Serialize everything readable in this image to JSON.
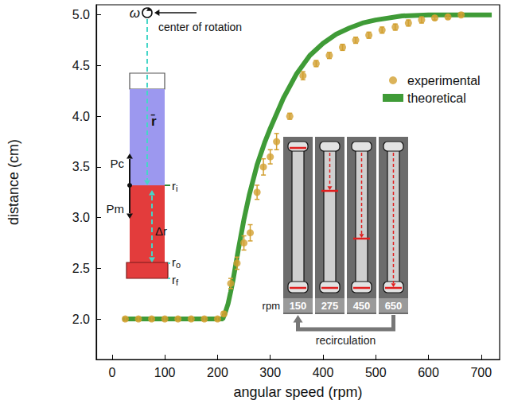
{
  "chart_data": {
    "type": "scatter",
    "x_label": "angular speed (rpm)",
    "y_label": "distance (cm)",
    "xlim": [
      -30,
      735
    ],
    "ylim": [
      1.6,
      5.1
    ],
    "xticks": [
      0,
      100,
      200,
      300,
      400,
      500,
      600,
      700
    ],
    "yticks": [
      {
        "value": 2,
        "label": "2.0"
      },
      2.5,
      {
        "value": 3,
        "label": "3.0"
      },
      3.5,
      {
        "value": 4,
        "label": "4.0"
      },
      4.5,
      {
        "value": 5,
        "label": "5.0"
      }
    ],
    "grid": false,
    "legend": "right",
    "series": [
      {
        "name": "experimental",
        "type": "scatter",
        "color": "#d2a031",
        "marker": "circle",
        "x": [
          25,
          50,
          75,
          100,
          125,
          150,
          175,
          200,
          212,
          225,
          237,
          250,
          262,
          275,
          287,
          300,
          312,
          337,
          362,
          387,
          412,
          437,
          462,
          487,
          512,
          537,
          562,
          587,
          612,
          637,
          662
        ],
        "values": [
          2.0,
          2.0,
          2.0,
          2.0,
          2.0,
          2.0,
          2.0,
          2.0,
          2.05,
          2.35,
          2.55,
          2.75,
          2.85,
          3.25,
          3.5,
          3.6,
          3.75,
          4.0,
          4.4,
          4.52,
          4.6,
          4.68,
          4.75,
          4.8,
          4.85,
          4.88,
          4.92,
          4.95,
          4.97,
          4.98,
          5.0
        ],
        "errors": [
          0.02,
          0.02,
          0.02,
          0.02,
          0.02,
          0.02,
          0.02,
          0.02,
          0.02,
          0.05,
          0.06,
          0.07,
          0.08,
          0.07,
          0.08,
          0.07,
          0.08,
          0.03,
          0.04,
          0.03,
          0.03,
          0.03,
          0.03,
          0.03,
          0.03,
          0.03,
          0.03,
          0.03,
          0.02,
          0.02,
          0.02
        ]
      },
      {
        "name": "theoretical",
        "type": "line",
        "color": "#3f9b37",
        "line_style": "solid",
        "x": [
          20,
          100,
          200,
          210,
          215,
          220,
          225,
          230,
          240,
          250,
          260,
          275,
          290,
          300,
          325,
          350,
          375,
          400,
          425,
          450,
          475,
          500,
          550,
          600,
          650,
          720
        ],
        "values": [
          2.0,
          2.0,
          2.0,
          2.0,
          2.07,
          2.15,
          2.27,
          2.4,
          2.7,
          2.98,
          3.22,
          3.52,
          3.75,
          3.88,
          4.18,
          4.42,
          4.6,
          4.72,
          4.81,
          4.87,
          4.92,
          4.95,
          4.99,
          5.0,
          5.0,
          5.0
        ]
      }
    ],
    "annotations": {
      "omega": "ω",
      "center": "center of rotation",
      "Pc": "Pc",
      "Pm": "Pm",
      "rbar": "r̄",
      "ri": "ri",
      "dr": "Δr",
      "ro": "ro",
      "rf": "rf",
      "rpm": "rpm",
      "speeds": [
        150,
        275,
        450,
        650
      ],
      "recirculation": "recirculation"
    }
  }
}
